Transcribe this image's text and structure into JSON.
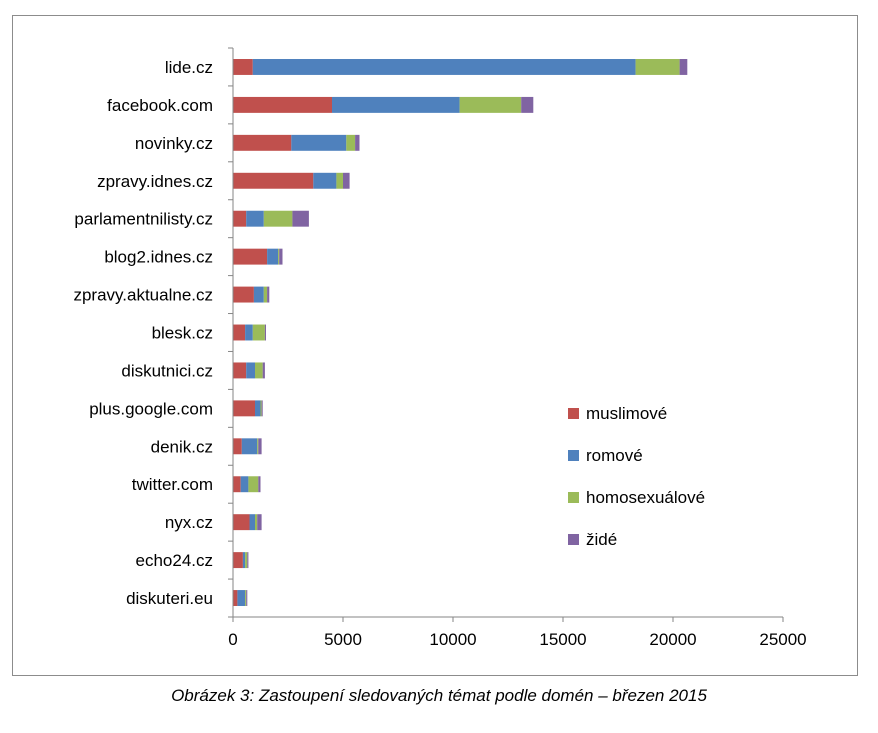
{
  "caption": "Obrázek 3: Zastoupení sledovaných témat podle domén – březen 2015",
  "chart_data": {
    "type": "bar",
    "orientation": "horizontal",
    "stacked": true,
    "categories": [
      "lide.cz",
      "facebook.com",
      "novinky.cz",
      "zpravy.idnes.cz",
      "parlamentnilisty.cz",
      "blog2.idnes.cz",
      "zpravy.aktualne.cz",
      "blesk.cz",
      "diskutnici.cz",
      "plus.google.com",
      "denik.cz",
      "twitter.com",
      "nyx.cz",
      "echo24.cz",
      "diskuteri.eu"
    ],
    "series": [
      {
        "name": "muslimové",
        "color": "#c0504d",
        "values": [
          900,
          4500,
          2650,
          3650,
          600,
          1550,
          950,
          550,
          600,
          1000,
          400,
          350,
          750,
          450,
          200
        ]
      },
      {
        "name": "romové",
        "color": "#4f81bd",
        "values": [
          17400,
          5800,
          2500,
          1050,
          800,
          500,
          450,
          350,
          400,
          250,
          700,
          350,
          250,
          100,
          350
        ]
      },
      {
        "name": "homosexuálové",
        "color": "#9bbb59",
        "values": [
          2000,
          2800,
          400,
          300,
          1300,
          50,
          150,
          550,
          350,
          50,
          50,
          450,
          100,
          100,
          50
        ]
      },
      {
        "name": "židé",
        "color": "#8064a2",
        "values": [
          350,
          550,
          200,
          300,
          750,
          150,
          100,
          50,
          100,
          50,
          150,
          100,
          200,
          50,
          50
        ]
      }
    ],
    "xlim": [
      0,
      25000
    ],
    "xticks": [
      0,
      5000,
      10000,
      15000,
      20000,
      25000
    ],
    "grid": false,
    "legend_position": "right-inside"
  }
}
